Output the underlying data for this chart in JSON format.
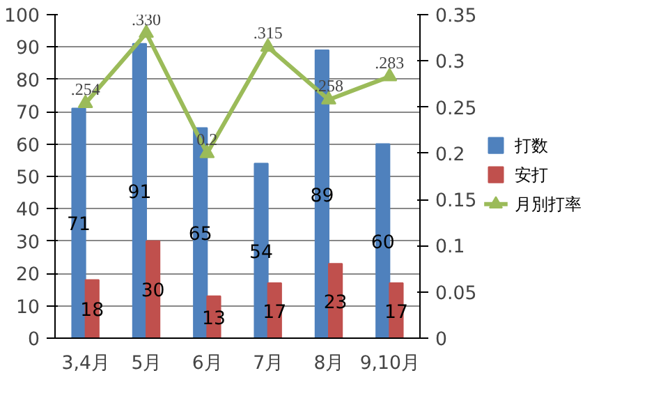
{
  "chart_data": {
    "type": "bar",
    "categories": [
      "3,4月",
      "5月",
      "6月",
      "7月",
      "8月",
      "9,10月"
    ],
    "series": [
      {
        "name": "打数",
        "color": "#4f81bd",
        "values": [
          71,
          91,
          65,
          54,
          89,
          60
        ],
        "value_labels": [
          "71",
          "91",
          "65",
          "54",
          "89",
          "60"
        ]
      },
      {
        "name": "安打",
        "color": "#c0504d",
        "values": [
          18,
          30,
          13,
          17,
          23,
          17
        ],
        "value_labels": [
          "18",
          "30",
          "13",
          "17",
          "23",
          "17"
        ]
      },
      {
        "name": "月別打率",
        "type": "line",
        "axis": "y2",
        "color": "#9bbb59",
        "marker": "triangle",
        "values": [
          0.254,
          0.33,
          0.2,
          0.315,
          0.258,
          0.283
        ],
        "value_labels": [
          ".254",
          ".330",
          "0.2",
          ".315",
          ".258",
          ".283"
        ]
      }
    ],
    "ylim": [
      0,
      100
    ],
    "yticks": [
      0,
      10,
      20,
      30,
      40,
      50,
      60,
      70,
      80,
      90,
      100
    ],
    "y2lim": [
      0,
      0.35
    ],
    "y2ticks": [
      0,
      0.05,
      0.1,
      0.15,
      0.2,
      0.25,
      0.3,
      0.35
    ],
    "grid": "y",
    "legend": "right"
  }
}
